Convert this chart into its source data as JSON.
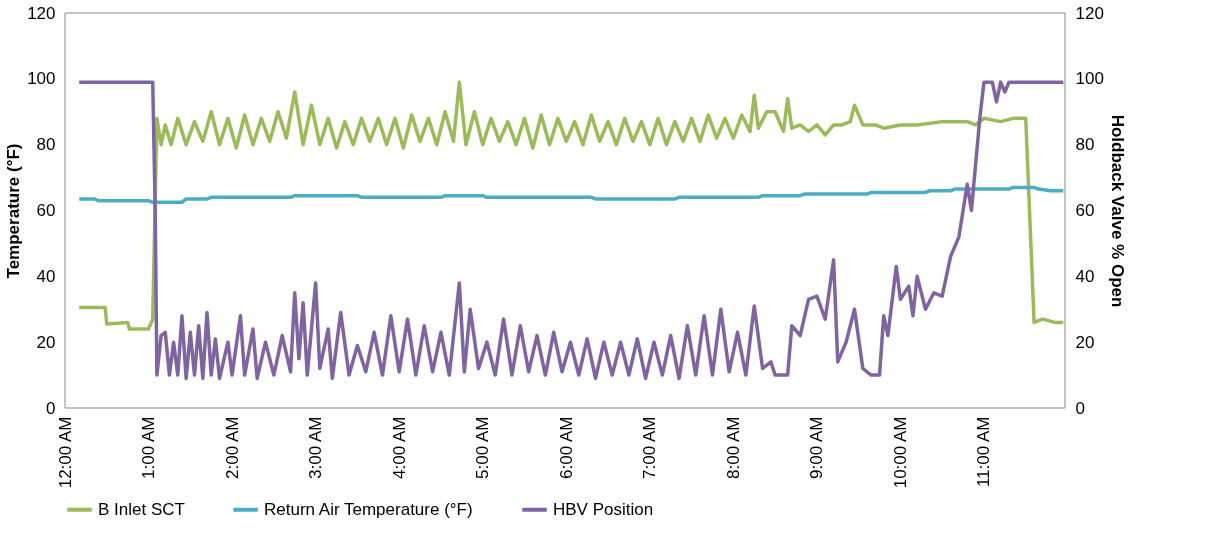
{
  "chart_data": {
    "type": "line",
    "ylabel": "Temperature (°F)",
    "y2label": "Holdback Valve % Open",
    "ylim": [
      0,
      120
    ],
    "yticks": [
      0,
      20,
      40,
      60,
      80,
      100,
      120
    ],
    "y2lim": [
      0,
      120
    ],
    "y2ticks": [
      0,
      20,
      40,
      60,
      80,
      100,
      120
    ],
    "xlim": [
      0,
      11.97
    ],
    "xticks": [
      {
        "value": 0,
        "label": "12:00 AM"
      },
      {
        "value": 1,
        "label": "1:00 AM"
      },
      {
        "value": 2,
        "label": "2:00 AM"
      },
      {
        "value": 3,
        "label": "3:00 AM"
      },
      {
        "value": 4,
        "label": "4:00 AM"
      },
      {
        "value": 5,
        "label": "5:00 AM"
      },
      {
        "value": 6,
        "label": "6:00 AM"
      },
      {
        "value": 7,
        "label": "7:00 AM"
      },
      {
        "value": 8,
        "label": "8:00 AM"
      },
      {
        "value": 9,
        "label": "9:00 AM"
      },
      {
        "value": 10,
        "label": "10:00 AM"
      },
      {
        "value": 11,
        "label": "11:00 AM"
      }
    ],
    "grid": false,
    "legend": "bottom",
    "marker": "none",
    "line_style": "solid",
    "series": [
      {
        "name": "B Inlet SCT",
        "color": "#9bbb59",
        "x": [
          0.17,
          0.48,
          0.5,
          0.75,
          0.77,
          1.0,
          1.05,
          1.1,
          1.15,
          1.2,
          1.27,
          1.35,
          1.45,
          1.55,
          1.65,
          1.75,
          1.85,
          1.95,
          2.05,
          2.15,
          2.25,
          2.35,
          2.45,
          2.55,
          2.65,
          2.75,
          2.85,
          2.95,
          3.05,
          3.15,
          3.25,
          3.35,
          3.45,
          3.55,
          3.65,
          3.75,
          3.85,
          3.95,
          4.05,
          4.15,
          4.25,
          4.35,
          4.45,
          4.55,
          4.65,
          4.72,
          4.8,
          4.9,
          5.0,
          5.1,
          5.2,
          5.3,
          5.4,
          5.5,
          5.6,
          5.7,
          5.8,
          5.9,
          6.0,
          6.1,
          6.2,
          6.3,
          6.4,
          6.5,
          6.6,
          6.7,
          6.8,
          6.9,
          7.0,
          7.1,
          7.2,
          7.3,
          7.4,
          7.5,
          7.6,
          7.7,
          7.8,
          7.9,
          8.0,
          8.1,
          8.2,
          8.25,
          8.3,
          8.4,
          8.5,
          8.6,
          8.65,
          8.7,
          8.8,
          8.9,
          9.0,
          9.1,
          9.2,
          9.3,
          9.4,
          9.45,
          9.55,
          9.7,
          9.8,
          10.0,
          10.2,
          10.5,
          10.8,
          10.9,
          11.0,
          11.2,
          11.35,
          11.5,
          11.6,
          11.7,
          11.85,
          11.95
        ],
        "values": [
          30.5,
          30.5,
          25.5,
          26,
          24,
          24,
          27,
          88,
          80,
          86,
          80,
          88,
          80,
          87,
          81,
          90,
          80,
          88,
          79,
          89,
          80,
          88,
          81,
          90,
          82,
          96,
          80,
          92,
          80,
          88,
          79,
          87,
          80,
          88,
          81,
          88,
          80,
          88,
          79,
          89,
          81,
          88,
          80,
          90,
          81,
          99,
          80,
          90,
          80,
          88,
          81,
          87,
          80,
          88,
          79,
          89,
          80,
          88,
          81,
          87,
          80,
          89,
          81,
          87,
          80,
          88,
          81,
          87,
          80,
          88,
          80,
          87,
          81,
          88,
          81,
          89,
          82,
          88,
          82,
          89,
          84,
          95,
          85,
          90,
          90,
          84,
          94,
          85,
          86,
          84,
          86,
          83,
          86,
          86,
          87,
          92,
          86,
          86,
          85,
          86,
          86,
          87,
          87,
          86,
          88,
          87,
          88,
          88,
          26,
          27,
          26,
          26
        ]
      },
      {
        "name": "Return Air Temperature (°F)",
        "color": "#4bacc6",
        "x": [
          0.17,
          0.35,
          0.4,
          1.0,
          1.05,
          1.4,
          1.45,
          1.7,
          1.75,
          2.7,
          2.75,
          3.5,
          3.55,
          4.5,
          4.55,
          5.0,
          5.05,
          6.3,
          6.35,
          7.3,
          7.35,
          8.3,
          8.35,
          8.8,
          8.85,
          9.6,
          9.65,
          10.3,
          10.35,
          10.6,
          10.65,
          11.3,
          11.35,
          11.6,
          11.65,
          11.8,
          11.95
        ],
        "values": [
          63.5,
          63.5,
          63,
          63,
          62.5,
          62.5,
          63.5,
          63.5,
          64,
          64,
          64.5,
          64.5,
          64,
          64,
          64.5,
          64.5,
          64,
          64,
          63.5,
          63.5,
          64,
          64,
          64.5,
          64.5,
          65,
          65,
          65.5,
          65.5,
          66,
          66,
          66.5,
          66.5,
          67,
          67,
          66.5,
          66,
          66
        ]
      },
      {
        "name": "HBV Position",
        "color": "#8064a2",
        "axis": "y2",
        "x": [
          0.17,
          1.05,
          1.08,
          1.1,
          1.15,
          1.2,
          1.25,
          1.3,
          1.35,
          1.4,
          1.45,
          1.5,
          1.55,
          1.6,
          1.65,
          1.7,
          1.75,
          1.8,
          1.85,
          1.95,
          2.0,
          2.1,
          2.15,
          2.25,
          2.3,
          2.4,
          2.5,
          2.6,
          2.7,
          2.75,
          2.8,
          2.85,
          2.9,
          3.0,
          3.05,
          3.15,
          3.2,
          3.3,
          3.4,
          3.5,
          3.6,
          3.7,
          3.8,
          3.9,
          4.0,
          4.1,
          4.2,
          4.3,
          4.4,
          4.5,
          4.6,
          4.72,
          4.78,
          4.85,
          4.95,
          5.05,
          5.15,
          5.25,
          5.35,
          5.45,
          5.55,
          5.65,
          5.75,
          5.85,
          5.95,
          6.05,
          6.15,
          6.25,
          6.35,
          6.45,
          6.55,
          6.65,
          6.75,
          6.85,
          6.95,
          7.05,
          7.15,
          7.25,
          7.35,
          7.45,
          7.55,
          7.65,
          7.75,
          7.85,
          7.95,
          8.05,
          8.15,
          8.25,
          8.35,
          8.45,
          8.5,
          8.65,
          8.7,
          8.8,
          8.9,
          9.0,
          9.1,
          9.2,
          9.25,
          9.35,
          9.45,
          9.55,
          9.65,
          9.75,
          9.8,
          9.85,
          9.95,
          10.0,
          10.1,
          10.15,
          10.2,
          10.3,
          10.4,
          10.5,
          10.6,
          10.7,
          10.8,
          10.85,
          10.95,
          11.0,
          11.1,
          11.15,
          11.2,
          11.25,
          11.3,
          11.95
        ],
        "values": [
          99,
          99,
          60,
          10,
          22,
          23,
          10,
          20,
          10,
          28,
          9,
          23,
          10,
          25,
          9,
          29,
          10,
          21,
          9,
          20,
          10,
          28,
          10,
          24,
          9,
          20,
          10,
          22,
          11,
          35,
          15,
          32,
          10,
          38,
          12,
          24,
          9,
          29,
          10,
          19,
          11,
          23,
          10,
          28,
          11,
          27,
          10,
          25,
          11,
          23,
          10,
          38,
          11,
          30,
          12,
          20,
          10,
          27,
          10,
          25,
          11,
          22,
          10,
          23,
          11,
          20,
          10,
          21,
          9,
          20,
          10,
          20,
          10,
          21,
          9,
          20,
          10,
          22,
          9,
          25,
          10,
          28,
          10,
          30,
          11,
          23,
          10,
          31,
          12,
          14,
          10,
          10,
          25,
          22,
          33,
          34,
          27,
          45,
          14,
          20,
          30,
          12,
          10,
          10,
          28,
          22,
          43,
          33,
          37,
          28,
          40,
          30,
          35,
          34,
          46,
          52,
          68,
          60,
          88,
          99,
          99,
          93,
          99,
          96,
          99,
          99
        ]
      }
    ]
  }
}
